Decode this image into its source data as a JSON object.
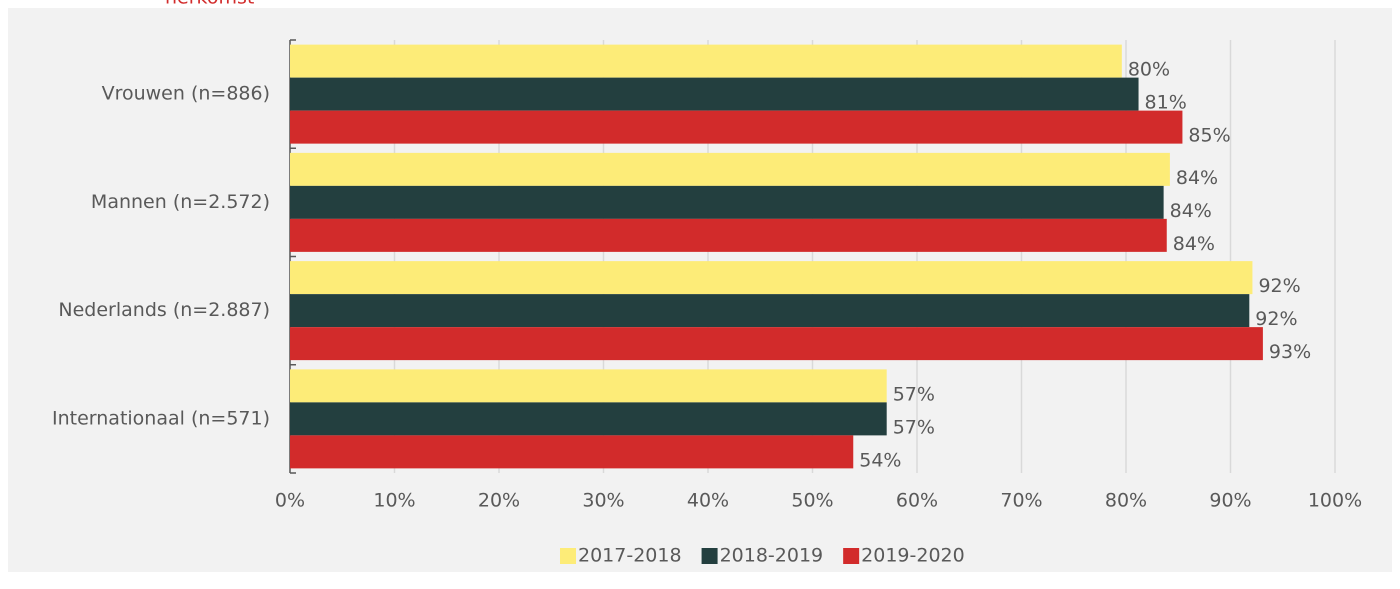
{
  "chart_data": {
    "type": "barh",
    "title": "herkomst",
    "categories": [
      "Vrouwen (n=886)",
      "Mannen (n=2.572)",
      "Nederlands (n=2.887)",
      "Internationaal (n=571)"
    ],
    "series": [
      {
        "name": "2017-2018",
        "color": "#fdec78",
        "values": [
          79.6,
          84.2,
          92.1,
          57.1
        ],
        "value_labels": [
          "80%",
          "84%",
          "92%",
          "57%"
        ]
      },
      {
        "name": "2018-2019",
        "color": "#233f3f",
        "values": [
          81.2,
          83.6,
          91.8,
          57.1
        ],
        "value_labels": [
          "81%",
          "84%",
          "92%",
          "57%"
        ]
      },
      {
        "name": "2019-2020",
        "color": "#d22b2b",
        "values": [
          85.4,
          83.9,
          93.1,
          53.9
        ],
        "value_labels": [
          "85%",
          "84%",
          "93%",
          "54%"
        ]
      }
    ],
    "xlim": [
      0,
      100
    ],
    "xticks": [
      {
        "value": 0,
        "label": "0%"
      },
      {
        "value": 10,
        "label": "10%"
      },
      {
        "value": 20,
        "label": "20%"
      },
      {
        "value": 30,
        "label": "30%"
      },
      {
        "value": 40,
        "label": "40%"
      },
      {
        "value": 50,
        "label": "50%"
      },
      {
        "value": 60,
        "label": "60%"
      },
      {
        "value": 70,
        "label": "70%"
      },
      {
        "value": 80,
        "label": "80%"
      },
      {
        "value": 90,
        "label": "90%"
      },
      {
        "value": 100,
        "label": "100%"
      }
    ],
    "grid": true,
    "legend": "bottom"
  }
}
